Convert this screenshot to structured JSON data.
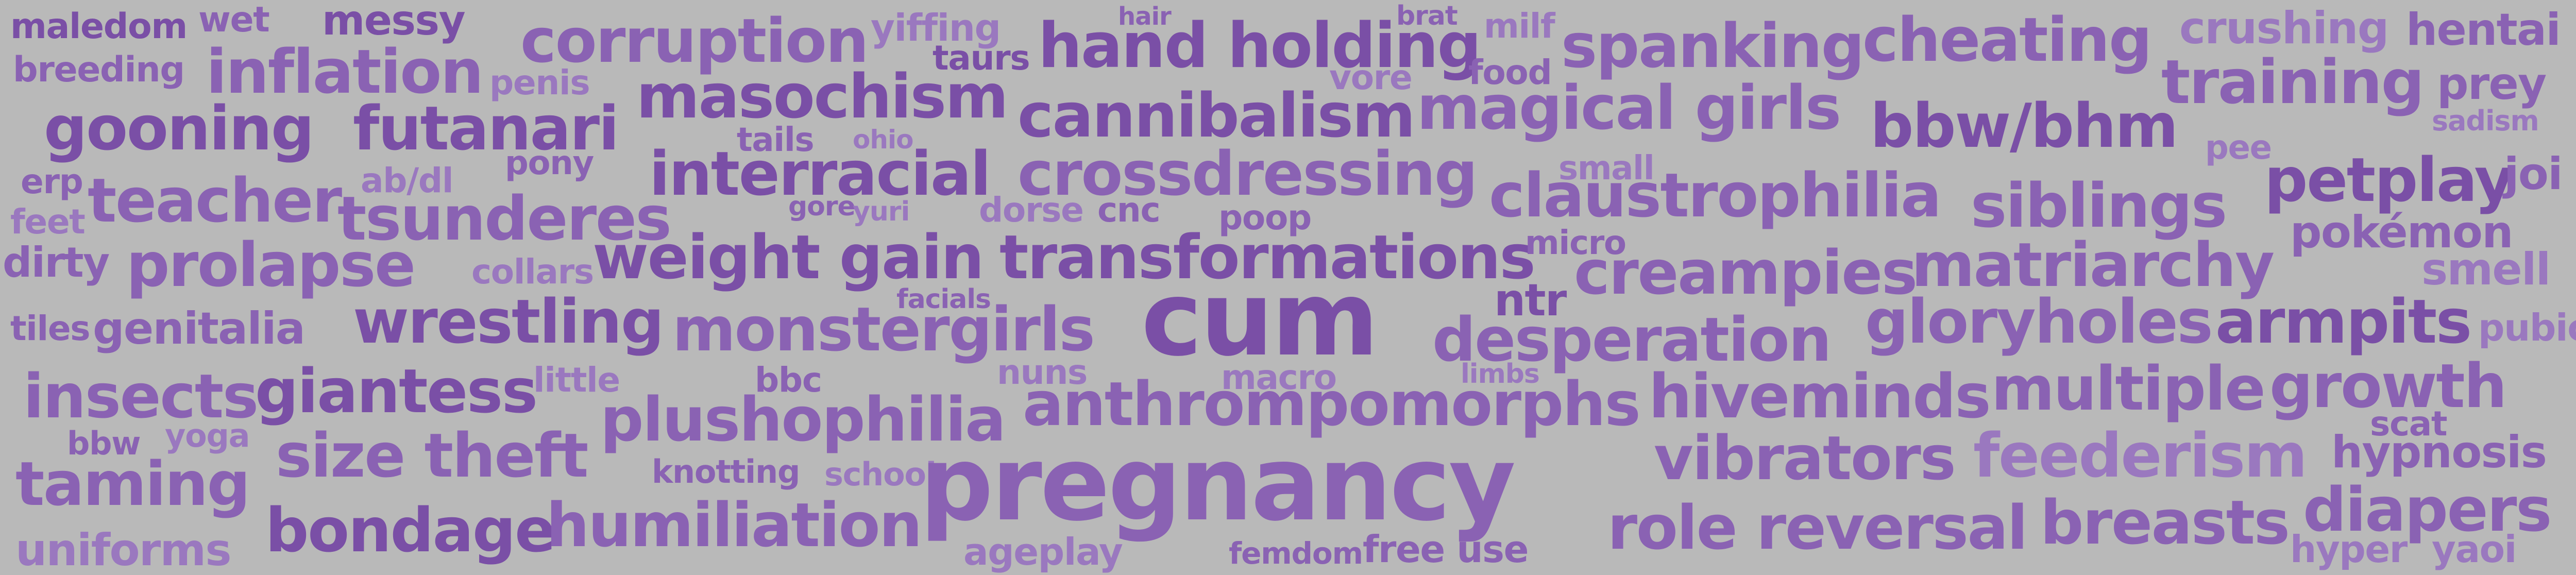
{
  "colors": {
    "background": "#b9b9b9",
    "dark": "#7a4fa6",
    "mid": "#8a62b3",
    "light": "#9a78bf"
  },
  "words": [
    "maledom",
    "wet",
    "messy",
    "corruption",
    "yiffing",
    "hair",
    "hand holding",
    "brat",
    "milf",
    "spanking",
    "cheating",
    "crushing",
    "hentai",
    "breeding",
    "inflation",
    "penis",
    "taurs",
    "vore",
    "food",
    "training",
    "prey",
    "sadism",
    "gooning",
    "futanari",
    "masochism",
    "tails",
    "ohio",
    "cannibalism",
    "magical girls",
    "bbw/bhm",
    "pee",
    "erp",
    "pony",
    "ab/dl",
    "interracial",
    "crossdressing",
    "small",
    "petplay",
    "joi",
    "feet",
    "teacher",
    "tsunderes",
    "gore",
    "yuri",
    "dorse",
    "cnc",
    "poop",
    "claustrophilia",
    "siblings",
    "pokémon",
    "dirty",
    "prolapse",
    "collars",
    "weight gain",
    "transformations",
    "micro",
    "creampies",
    "matriarchy",
    "smell",
    "tiles",
    "genitalia",
    "facials",
    "ntr",
    "cum",
    "desperation",
    "gloryholes",
    "armpits",
    "pubic",
    "wrestling",
    "monstergirls",
    "nuns",
    "macro",
    "limbs",
    "insects",
    "giantess",
    "little",
    "bbc",
    "anthrompomorphs",
    "hiveminds",
    "multiple",
    "growth",
    "bbw",
    "yoga",
    "plushophilia",
    "scat",
    "size theft",
    "vibrators",
    "feederism",
    "hypnosis",
    "taming",
    "knotting",
    "school",
    "pregnancy",
    "diapers",
    "bondage",
    "humiliation",
    "role reversal",
    "breasts",
    "uniforms",
    "ageplay",
    "femdom",
    "free use",
    "hyper",
    "yaoi"
  ]
}
